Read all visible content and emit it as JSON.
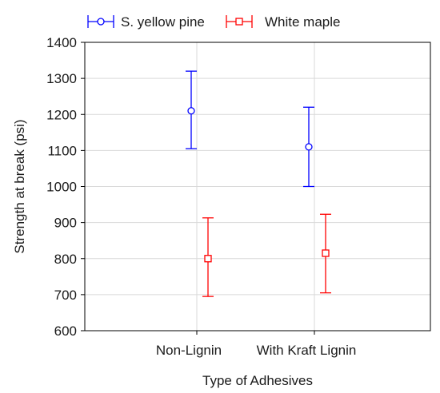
{
  "chart_data": {
    "type": "scatter",
    "title": "",
    "xlabel": "Type of Adhesives",
    "ylabel": "Strength at break (psi)",
    "categories": [
      "Non-Lignin",
      "With Kraft Lignin"
    ],
    "ylim": [
      600,
      1400
    ],
    "yticks": [
      600,
      700,
      800,
      900,
      1000,
      1100,
      1200,
      1300,
      1400
    ],
    "grid": true,
    "legend_position": "top",
    "series": [
      {
        "name": "S. yellow pine",
        "color": "#0000ff",
        "marker": "circle",
        "values": [
          1210,
          1110
        ],
        "error_low": [
          1105,
          1000
        ],
        "error_high": [
          1320,
          1220
        ]
      },
      {
        "name": "White maple",
        "color": "#ff0000",
        "marker": "square",
        "values": [
          800,
          815
        ],
        "error_low": [
          695,
          705
        ],
        "error_high": [
          913,
          923
        ]
      }
    ]
  }
}
